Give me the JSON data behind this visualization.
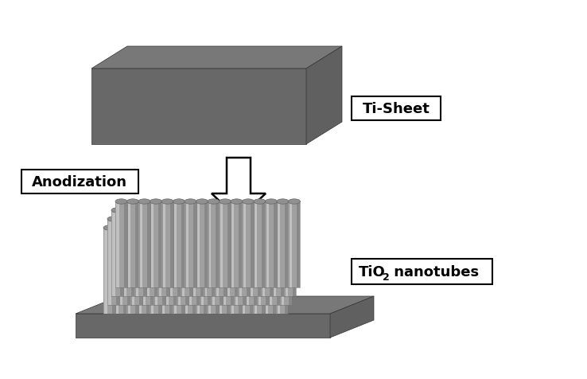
{
  "bg_color": "#ffffff",
  "ti_top_color": "#787878",
  "ti_front_color": "#686868",
  "ti_side_color": "#606060",
  "base_top_color": "#787878",
  "base_front_color": "#686868",
  "base_side_color": "#606060",
  "tube_light": "#c0c0c0",
  "tube_mid": "#a0a0a0",
  "tube_dark": "#888888",
  "tube_top_color": "#909090",
  "label_ti_sheet": "Ti-Sheet",
  "label_anodization": "Anodization",
  "label_tio2_main": "TiO",
  "label_tio2_sub": "2",
  "label_nanotubes": " nanotubes",
  "font_size_labels": 13,
  "font_weight": "bold",
  "arrow_fill": "#ffffff",
  "arrow_edge": "#000000"
}
